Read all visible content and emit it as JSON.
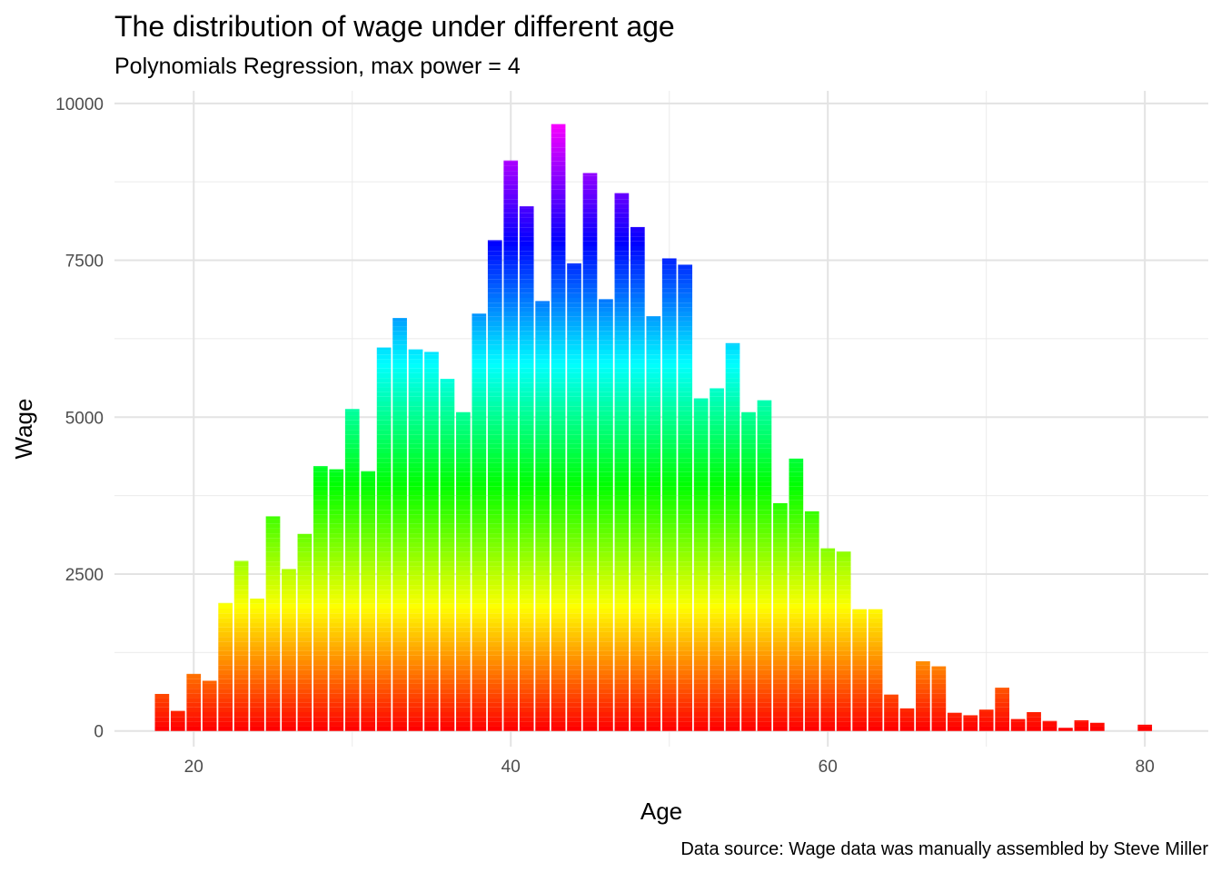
{
  "chart_data": {
    "type": "bar",
    "stacked": true,
    "title": "The distribution of wage under different age",
    "subtitle": "Polynomials Regression, max power = 4",
    "xlabel": "Age",
    "ylabel": "Wage",
    "caption": "Data source: Wage data was manually assembled by Steve Miller",
    "xlim": [
      15,
      84
    ],
    "ylim": [
      -250,
      10200
    ],
    "x_ticks": [
      20,
      40,
      60,
      80
    ],
    "y_ticks": [
      0,
      2500,
      5000,
      7500,
      10000
    ],
    "y_tick_labels": [
      "0",
      "2500",
      "5000",
      "7500",
      "10000"
    ],
    "grid": true,
    "legend": "none",
    "segment_value": 75,
    "palette": "rainbow (red to magenta), each stacked segment is one worker's wage",
    "x": [
      18,
      19,
      20,
      21,
      22,
      23,
      24,
      25,
      26,
      27,
      28,
      29,
      30,
      31,
      32,
      33,
      34,
      35,
      36,
      37,
      38,
      39,
      40,
      41,
      42,
      43,
      44,
      45,
      46,
      47,
      48,
      49,
      50,
      51,
      52,
      53,
      54,
      55,
      56,
      57,
      58,
      59,
      60,
      61,
      62,
      63,
      64,
      65,
      66,
      67,
      68,
      69,
      70,
      71,
      72,
      73,
      74,
      75,
      76,
      77,
      78,
      79,
      80
    ],
    "values": [
      590,
      320,
      910,
      800,
      2040,
      2710,
      2110,
      3420,
      2580,
      3140,
      4220,
      4170,
      5130,
      4140,
      6110,
      6580,
      6080,
      6040,
      5610,
      5080,
      6650,
      7820,
      9090,
      8360,
      6850,
      9670,
      7450,
      8890,
      6880,
      8570,
      8030,
      6610,
      7530,
      7430,
      5300,
      5460,
      6180,
      5080,
      5270,
      3630,
      4340,
      3500,
      2910,
      2860,
      1940,
      1940,
      580,
      360,
      1110,
      1030,
      290,
      250,
      340,
      690,
      190,
      300,
      160,
      50,
      170,
      130,
      0,
      0,
      100
    ]
  }
}
